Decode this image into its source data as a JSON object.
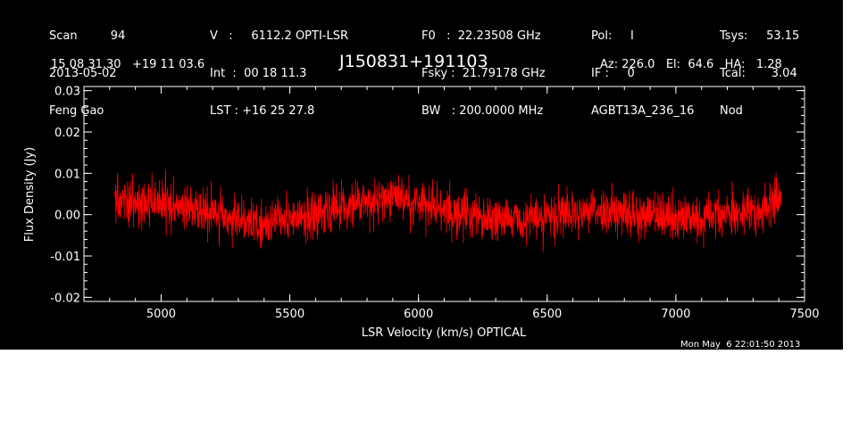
{
  "header": {
    "col1": [
      "Scan         94",
      "2013-05-02",
      "Feng Gao"
    ],
    "col2": [
      "V   :     6112.2 OPTI-LSR",
      "Int  :  00 18 11.3",
      "LST : +16 25 27.8"
    ],
    "col3": [
      "F0   :  22.23508 GHz",
      "Fsky :  21.79178 GHz",
      "BW   : 200.0000 MHz"
    ],
    "col4": [
      "Pol:     I",
      "IF :     0",
      "AGBT13A_236_16"
    ],
    "col5": [
      "Tsys:     53.15",
      "Tcal:       3.04",
      "Nod"
    ],
    "coords": "15 08 31.30   +19 11 03.6",
    "source": "J150831+191103",
    "azelha": "Az: 226.0   El:  64.6   HA:   1.28"
  },
  "footer": {
    "timestamp": "Mon May  6 22:01:50 2013"
  },
  "chart_data": {
    "type": "line",
    "xlabel": "LSR Velocity (km/s) OPTICAL",
    "ylabel": "Flux Density (Jy)",
    "xlim": [
      4700,
      7500
    ],
    "ylim": [
      -0.021,
      0.031
    ],
    "xticks": [
      5000,
      5500,
      6000,
      6500,
      7000,
      7500
    ],
    "xtick_labels": [
      "5000",
      "5500",
      "6000",
      "6500",
      "7000",
      "7500"
    ],
    "yticks": [
      -0.02,
      -0.01,
      0.0,
      0.01,
      0.02,
      0.03
    ],
    "ytick_labels": [
      "-0.02",
      "-0.01",
      "0.00",
      "0.01",
      "0.02",
      "0.03"
    ],
    "series": [
      {
        "color": "#ff0000",
        "x_range": [
          4820,
          7410
        ],
        "baseline": [
          [
            4820,
            0.003
          ],
          [
            5000,
            0.003
          ],
          [
            5100,
            0.001
          ],
          [
            5200,
            0.0
          ],
          [
            5300,
            -0.001
          ],
          [
            5400,
            -0.002
          ],
          [
            5500,
            -0.001
          ],
          [
            5600,
            0.0
          ],
          [
            5700,
            0.002
          ],
          [
            5800,
            0.003
          ],
          [
            5900,
            0.004
          ],
          [
            6000,
            0.003
          ],
          [
            6100,
            0.001
          ],
          [
            6200,
            0.0
          ],
          [
            6300,
            -0.001
          ],
          [
            6400,
            -0.001
          ],
          [
            6500,
            0.0
          ],
          [
            6600,
            0.001
          ],
          [
            6700,
            0.001
          ],
          [
            6800,
            0.0
          ],
          [
            6900,
            0.0
          ],
          [
            7000,
            -0.001
          ],
          [
            7100,
            -0.001
          ],
          [
            7200,
            0.0
          ],
          [
            7300,
            0.001
          ],
          [
            7410,
            0.003
          ]
        ],
        "noise_rms": 0.0055
      }
    ],
    "grid": false
  }
}
